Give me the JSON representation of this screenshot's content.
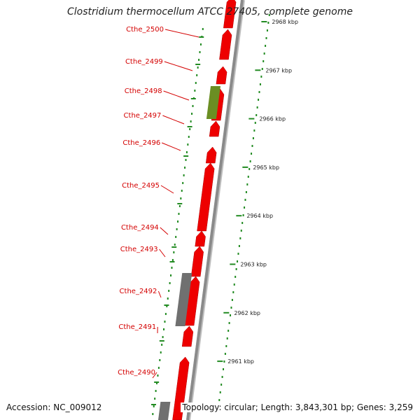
{
  "title": "Clostridium thermocellum ATCC 27405, complete genome",
  "accession": "Accession: NC_009012",
  "summary": "Topology: circular; Length: 3,843,301 bp; Genes: 3,259",
  "colors": {
    "gene": "#ee0000",
    "gene_highlight": "#6b8e23",
    "gene_other": "#707070",
    "backbone": "#8a8a8a",
    "ticks": "#228b22",
    "label": "#d40000"
  },
  "scale_ticks": [
    {
      "label": "2968 kbp",
      "kbp": 2968
    },
    {
      "label": "2967 kbp",
      "kbp": 2967
    },
    {
      "label": "2966 kbp",
      "kbp": 2966
    },
    {
      "label": "2965 kbp",
      "kbp": 2965
    },
    {
      "label": "2964 kbp",
      "kbp": 2964
    },
    {
      "label": "2963 kbp",
      "kbp": 2963
    },
    {
      "label": "2962 kbp",
      "kbp": 2962
    },
    {
      "label": "2961 kbp",
      "kbp": 2961
    }
  ],
  "genes": [
    {
      "label": "Cthe_2500"
    },
    {
      "label": "Cthe_2499"
    },
    {
      "label": "Cthe_2498"
    },
    {
      "label": "Cthe_2497"
    },
    {
      "label": "Cthe_2496"
    },
    {
      "label": "Cthe_2495"
    },
    {
      "label": "Cthe_2494"
    },
    {
      "label": "Cthe_2493"
    },
    {
      "label": "Cthe_2492"
    },
    {
      "label": "Cthe_2491"
    },
    {
      "label": "Cthe_2490"
    }
  ]
}
